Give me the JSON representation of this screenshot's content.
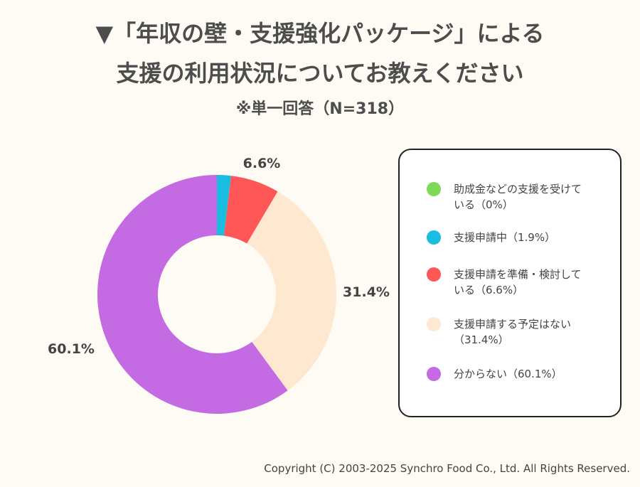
{
  "title": {
    "line1": "▼「年収の壁・支援強化パッケージ」による",
    "line2": "支援の利用状況についてお教えください",
    "note": "※単一回答（N=318）"
  },
  "chart_data": {
    "type": "pie",
    "donut": true,
    "start": "top",
    "direction": "clockwise",
    "categories": [
      "助成金などの支援を受けている",
      "支援申請中",
      "支援申請を準備・検討している",
      "支援申請する予定はない",
      "分からない"
    ],
    "values": [
      0,
      1.9,
      6.6,
      31.4,
      60.1
    ],
    "unit": "%",
    "colors": [
      "#7ed957",
      "#1abce0",
      "#ff5757",
      "#ffe8cf",
      "#c46ae3"
    ],
    "data_labels": [
      "",
      "",
      "6.6%",
      "31.4%",
      "60.1%"
    ],
    "legend_placement": "right"
  },
  "legend": {
    "items": [
      {
        "line1": "助成金などの支援を受けて",
        "line2": "いる（0%）"
      },
      {
        "line1": "支援申請中（1.9%）",
        "line2": ""
      },
      {
        "line1": "支援申請を準備・検討して",
        "line2": "いる（6.6%）"
      },
      {
        "line1": "支援申請する予定はない",
        "line2": "（31.4%）"
      },
      {
        "line1": "分からない（60.1%）",
        "line2": ""
      }
    ]
  },
  "footer": {
    "copyright": "Copyright (C) 2003-2025  Synchro Food Co., Ltd. All Rights Reserved."
  }
}
